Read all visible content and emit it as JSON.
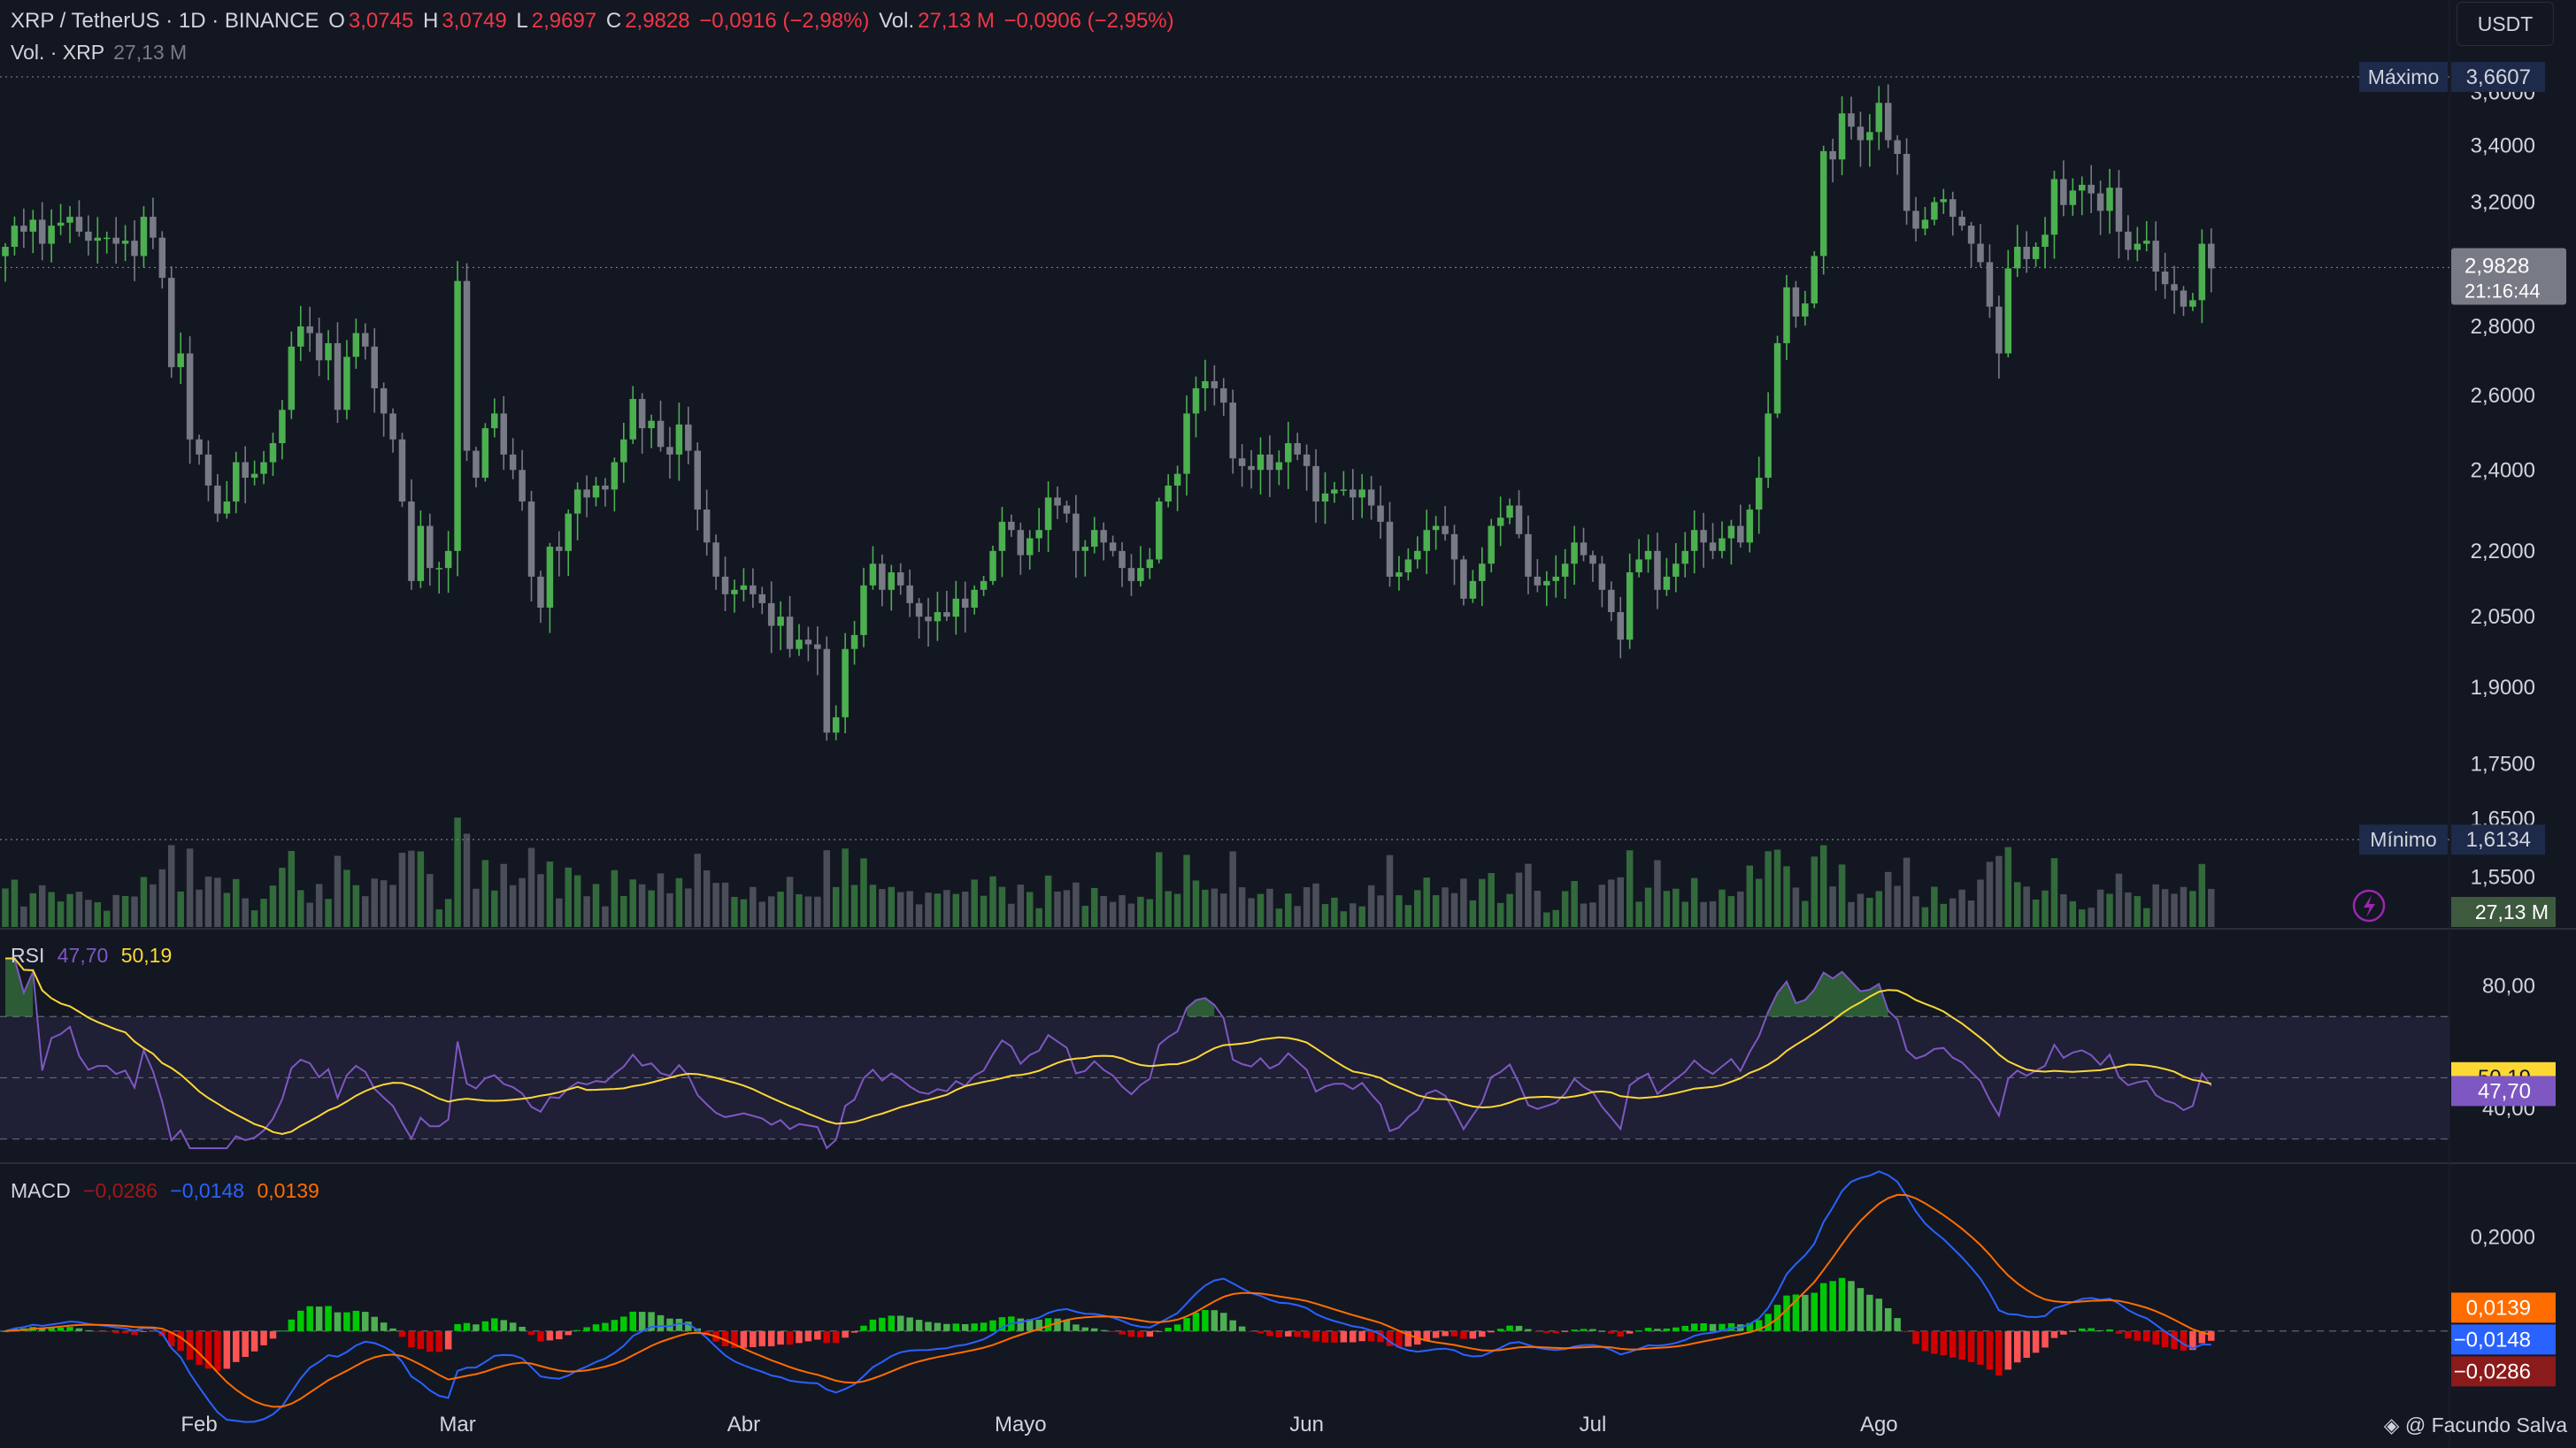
{
  "header": {
    "symbol": "XRP / TetherUS · 1D · BINANCE",
    "o_label": "O",
    "o_value": "3,0745",
    "h_label": "H",
    "h_value": "3,0749",
    "l_label": "L",
    "l_value": "2,9697",
    "c_label": "C",
    "c_value": "2,9828",
    "change": "−0,0916 (−2,98%)",
    "vol_label": "Vol.",
    "vol_value": "27,13 M",
    "vol_change": "−0,0906 (−2,95%)"
  },
  "volume_legend": {
    "label": "Vol. · XRP",
    "value": "27,13 M"
  },
  "currency_button": "USDT",
  "price_axis": {
    "ticks": [
      "3,6000",
      "3,4000",
      "3,2000",
      "2,8000",
      "2,6000",
      "2,4000",
      "2,2000",
      "2,0500",
      "1,9000",
      "1,7500",
      "1,6500",
      "1,5500"
    ],
    "max_label": "Máximo",
    "max_value": "3,6607",
    "min_label": "Mínimo",
    "min_value": "1,6134",
    "last_price": "2,9828",
    "countdown": "21:16:44",
    "volume_value": "27,13 M"
  },
  "rsi": {
    "label": "RSI",
    "value": "47,70",
    "ma_value": "50,19",
    "ticks": [
      "80,00",
      "40,00"
    ]
  },
  "macd": {
    "label": "MACD",
    "hist_value": "−0,0286",
    "macd_value": "−0,0148",
    "signal_value": "0,0139",
    "ticks": [
      "0,2000"
    ]
  },
  "time_axis": [
    "Feb",
    "Mar",
    "Abr",
    "Mayo",
    "Jun",
    "Jul",
    "Ago"
  ],
  "credit": "@ Facundo Salva",
  "colors": {
    "up": "#4caf50",
    "down": "#787b86",
    "rsi": "#7e57c2",
    "rsi_ma": "#fdd835",
    "macd": "#2962ff",
    "signal": "#ff6d00",
    "hist_up": "#00c805",
    "hist_down": "#ff0000"
  },
  "chart_data": {
    "type": "candlestick",
    "symbol": "XRP / TetherUS",
    "interval": "1D",
    "exchange": "BINANCE",
    "scale": "log",
    "ylim": [
      1.52,
      3.72
    ],
    "x_ticks": [
      "Feb",
      "Mar",
      "Abr",
      "Mayo",
      "Jun",
      "Jul",
      "Ago"
    ],
    "closes": [
      3.05,
      3.12,
      3.1,
      3.14,
      3.06,
      3.12,
      3.13,
      3.15,
      3.1,
      3.07,
      3.08,
      3.08,
      3.06,
      3.07,
      3.02,
      3.15,
      3.08,
      2.95,
      2.68,
      2.72,
      2.48,
      2.44,
      2.36,
      2.29,
      2.32,
      2.42,
      2.38,
      2.39,
      2.42,
      2.47,
      2.56,
      2.74,
      2.8,
      2.78,
      2.7,
      2.75,
      2.56,
      2.71,
      2.78,
      2.74,
      2.62,
      2.55,
      2.48,
      2.32,
      2.13,
      2.26,
      2.16,
      2.16,
      2.2,
      2.94,
      2.45,
      2.38,
      2.51,
      2.55,
      2.44,
      2.4,
      2.32,
      2.14,
      2.07,
      2.21,
      2.2,
      2.29,
      2.35,
      2.33,
      2.36,
      2.35,
      2.42,
      2.48,
      2.59,
      2.51,
      2.53,
      2.46,
      2.44,
      2.52,
      2.45,
      2.3,
      2.22,
      2.14,
      2.1,
      2.11,
      2.12,
      2.1,
      2.08,
      2.03,
      2.05,
      1.98,
      2.0,
      1.99,
      1.98,
      1.81,
      1.84,
      1.98,
      2.01,
      2.12,
      2.17,
      2.11,
      2.15,
      2.12,
      2.08,
      2.05,
      2.04,
      2.06,
      2.05,
      2.09,
      2.07,
      2.11,
      2.13,
      2.2,
      2.27,
      2.25,
      2.19,
      2.23,
      2.25,
      2.33,
      2.31,
      2.29,
      2.2,
      2.21,
      2.25,
      2.22,
      2.2,
      2.16,
      2.13,
      2.16,
      2.18,
      2.32,
      2.36,
      2.39,
      2.55,
      2.62,
      2.64,
      2.62,
      2.58,
      2.43,
      2.41,
      2.4,
      2.44,
      2.4,
      2.42,
      2.47,
      2.44,
      2.41,
      2.32,
      2.34,
      2.35,
      2.35,
      2.33,
      2.35,
      2.31,
      2.27,
      2.14,
      2.15,
      2.18,
      2.2,
      2.25,
      2.26,
      2.24,
      2.18,
      2.09,
      2.13,
      2.17,
      2.26,
      2.28,
      2.31,
      2.24,
      2.14,
      2.12,
      2.13,
      2.14,
      2.17,
      2.22,
      2.19,
      2.17,
      2.11,
      2.06,
      2.0,
      2.15,
      2.18,
      2.2,
      2.11,
      2.14,
      2.17,
      2.2,
      2.25,
      2.22,
      2.2,
      2.23,
      2.26,
      2.22,
      2.3,
      2.38,
      2.55,
      2.75,
      2.92,
      2.83,
      2.87,
      3.02,
      3.38,
      3.35,
      3.52,
      3.47,
      3.42,
      3.45,
      3.56,
      3.42,
      3.37,
      3.17,
      3.11,
      3.14,
      3.2,
      3.21,
      3.15,
      3.12,
      3.06,
      3.0,
      2.86,
      2.72,
      2.98,
      3.05,
      3.01,
      3.05,
      3.09,
      3.28,
      3.19,
      3.24,
      3.26,
      3.23,
      3.17,
      3.25,
      3.1,
      3.04,
      3.06,
      3.07,
      2.97,
      2.93,
      2.91,
      2.86,
      2.88,
      3.06,
      2.98
    ],
    "volume_last": "27,13 M",
    "max": 3.6607,
    "min": 1.6134,
    "last": 2.9828,
    "rsi": {
      "value": 47.7,
      "ma": 50.19,
      "overbought": 70,
      "oversold": 30,
      "ylim": [
        25,
        90
      ]
    },
    "macd": {
      "macd": -0.0148,
      "signal": 0.0139,
      "histogram": -0.0286,
      "ylim": [
        -0.16,
        0.3
      ]
    }
  }
}
